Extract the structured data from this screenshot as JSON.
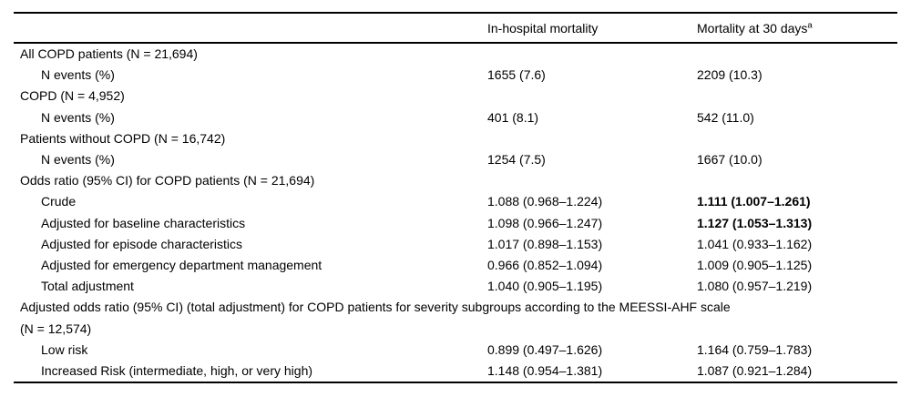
{
  "table": {
    "columns": [
      {
        "label": ""
      },
      {
        "label": "In-hospital mortality"
      },
      {
        "label": "Mortality at 30 days",
        "superscript": "a"
      }
    ],
    "rows": [
      {
        "type": "group",
        "label": "All COPD patients (N = 21,694)"
      },
      {
        "type": "data",
        "label": "N events (%)",
        "inhospital": "1655 (7.6)",
        "thirty_day": "2209 (10.3)"
      },
      {
        "type": "group",
        "label": "COPD (N = 4,952)"
      },
      {
        "type": "data",
        "label": "N events (%)",
        "inhospital": "401 (8.1)",
        "thirty_day": "542 (11.0)"
      },
      {
        "type": "group",
        "label": "Patients without COPD (N = 16,742)"
      },
      {
        "type": "data",
        "label": "N events (%)",
        "inhospital": "1254 (7.5)",
        "thirty_day": "1667 (10.0)"
      },
      {
        "type": "group",
        "label": "Odds ratio (95% CI) for COPD patients (N = 21,694)"
      },
      {
        "type": "data",
        "label": "Crude",
        "inhospital": "1.088 (0.968–1.224)",
        "thirty_day": "1.111 (1.007–1.261)",
        "thirty_day_bold": true
      },
      {
        "type": "data",
        "label": "Adjusted for baseline characteristics",
        "inhospital": "1.098 (0.966–1.247)",
        "thirty_day": "1.127 (1.053–1.313)",
        "thirty_day_bold": true
      },
      {
        "type": "data",
        "label": "Adjusted for episode characteristics",
        "inhospital": "1.017 (0.898–1.153)",
        "thirty_day": "1.041 (0.933–1.162)"
      },
      {
        "type": "data",
        "label": "Adjusted for emergency department management",
        "inhospital": "0.966 (0.852–1.094)",
        "thirty_day": "1.009 (0.905–1.125)"
      },
      {
        "type": "data",
        "label": "Total adjustment",
        "inhospital": "1.040 (0.905–1.195)",
        "thirty_day": "1.080 (0.957–1.219)"
      },
      {
        "type": "group",
        "label": "Adjusted odds ratio (95% CI) (total adjustment) for COPD patients for severity subgroups according to the MEESSI-AHF scale",
        "label_line2": "(N = 12,574)"
      },
      {
        "type": "data",
        "label": "Low risk",
        "inhospital": "0.899 (0.497–1.626)",
        "thirty_day": "1.164 (0.759–1.783)"
      },
      {
        "type": "data",
        "label": "Increased Risk (intermediate, high, or very high)",
        "inhospital": "1.148 (0.954–1.381)",
        "thirty_day": "1.087 (0.921–1.284)"
      }
    ]
  }
}
